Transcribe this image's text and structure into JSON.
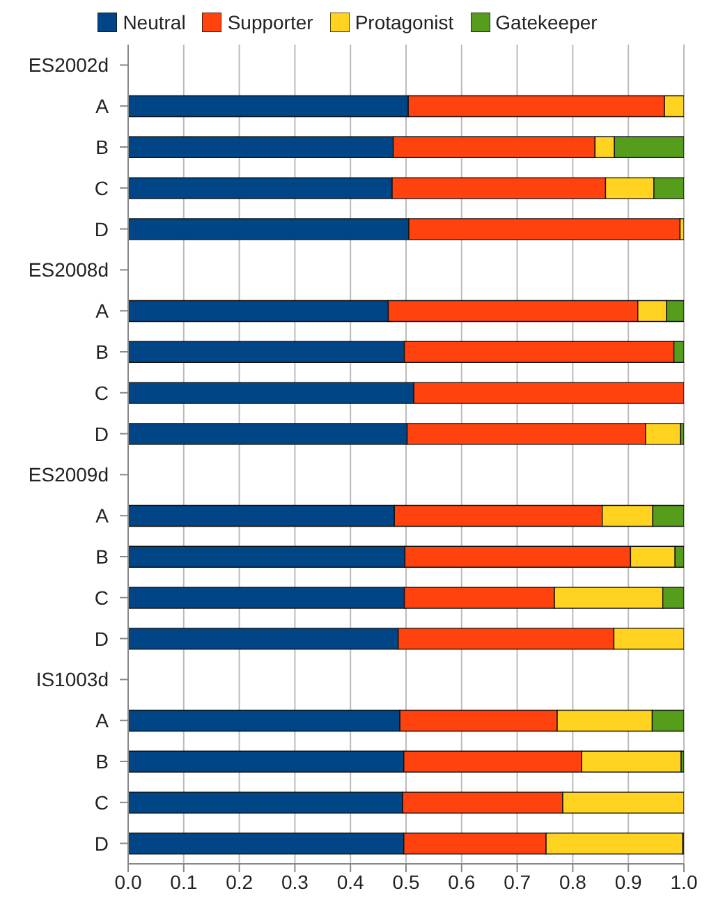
{
  "chart_data": {
    "type": "bar",
    "orientation": "horizontal",
    "stacked": true,
    "categories": [
      "ES2002d",
      "A",
      "B",
      "C",
      "D",
      "ES2008d",
      "A",
      "B",
      "C",
      "D",
      "ES2009d",
      "A",
      "B",
      "C",
      "D",
      "IS1003d",
      "A",
      "B",
      "C",
      "D"
    ],
    "series": [
      {
        "name": "Neutral",
        "color": "#004586",
        "values": [
          null,
          0.504,
          0.477,
          0.475,
          0.505,
          null,
          0.468,
          0.497,
          0.514,
          0.502,
          null,
          0.479,
          0.498,
          0.497,
          0.486,
          null,
          0.489,
          0.496,
          0.494,
          0.496
        ]
      },
      {
        "name": "Supporter",
        "color": "#ff420e",
        "values": [
          null,
          0.461,
          0.363,
          0.384,
          0.488,
          null,
          0.449,
          0.485,
          0.486,
          0.429,
          null,
          0.374,
          0.406,
          0.27,
          0.388,
          null,
          0.283,
          0.32,
          0.288,
          0.256
        ]
      },
      {
        "name": "Protagonist",
        "color": "#ffd320",
        "values": [
          null,
          0.035,
          0.035,
          0.087,
          0.007,
          null,
          0.052,
          0,
          0,
          0.063,
          null,
          0.091,
          0.08,
          0.195,
          0.126,
          null,
          0.171,
          0.179,
          0.218,
          0.246
        ]
      },
      {
        "name": "Gatekeeper",
        "color": "#579d1c",
        "values": [
          null,
          0,
          0.125,
          0.054,
          0,
          null,
          0.031,
          0.018,
          0,
          0.006,
          null,
          0.056,
          0.016,
          0.038,
          0,
          null,
          0.057,
          0.005,
          0,
          0.002
        ]
      }
    ],
    "xlim": [
      0,
      1
    ],
    "xticks": [
      {
        "value": 0,
        "label": "0.0"
      },
      {
        "value": 0.1,
        "label": "0.1"
      },
      {
        "value": 0.2,
        "label": "0.2"
      },
      {
        "value": 0.3,
        "label": "0.3"
      },
      {
        "value": 0.4,
        "label": "0.4"
      },
      {
        "value": 0.5,
        "label": "0.5"
      },
      {
        "value": 0.6,
        "label": "0.6"
      },
      {
        "value": 0.7,
        "label": "0.7"
      },
      {
        "value": 0.8,
        "label": "0.8"
      },
      {
        "value": 0.9,
        "label": "0.9"
      },
      {
        "value": 1,
        "label": "1.0"
      }
    ],
    "grid": "x",
    "legend": "top"
  }
}
